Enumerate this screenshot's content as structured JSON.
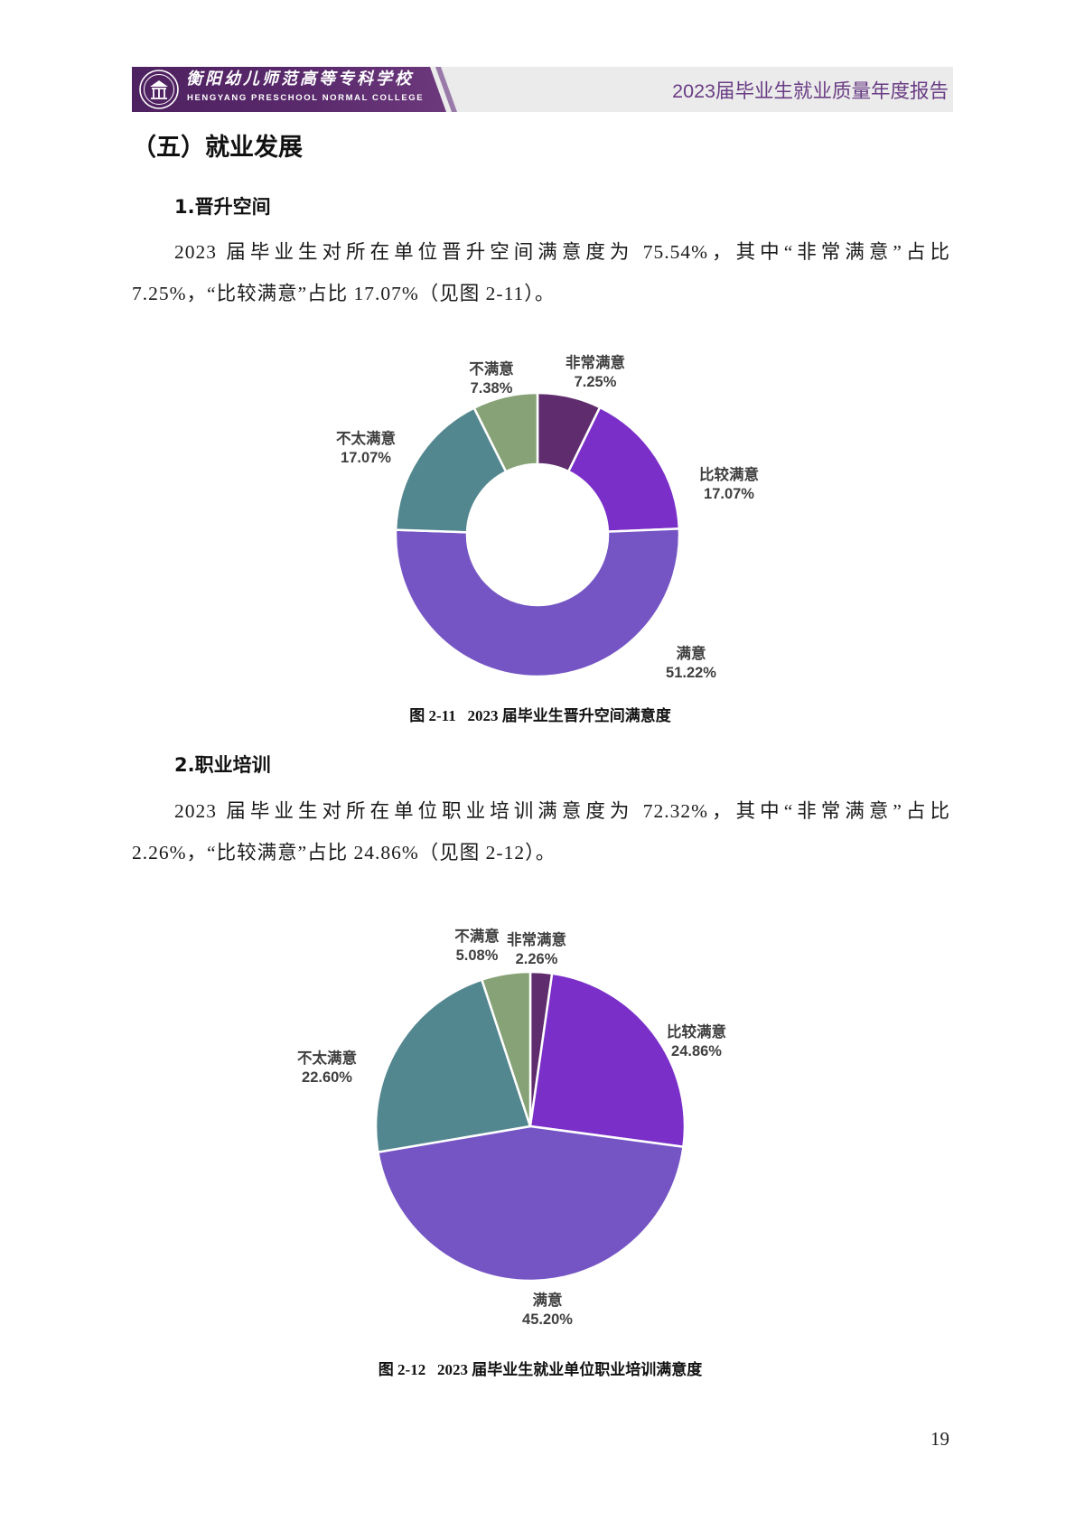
{
  "header": {
    "school_name_cn": "衡阳幼儿师范高等专科学校",
    "school_name_en": "HENGYANG PRESCHOOL NORMAL COLLEGE",
    "report_title": "2023届毕业生就业质量年度报告"
  },
  "colors": {
    "brand_purple": "#5a2a6c",
    "header_band": "#ebebeb",
    "report_title": "#6a3d85"
  },
  "section": {
    "title": "（五）就业发展",
    "subsections": [
      {
        "heading": "1.晋升空间",
        "lines": [
          "2023 届毕业生对所在单位晋升空间满意度为 75.54%，其中“非常满意”占比",
          "7.25%，“比较满意”占比 17.07%（见图 2-11）。"
        ]
      },
      {
        "heading": "2.职业培训",
        "lines": [
          "2023 届毕业生对所在单位职业培训满意度为 72.32%，其中“非常满意”占比",
          "2.26%，“比较满意”占比 24.86%（见图 2-12）。"
        ]
      }
    ]
  },
  "chart_data": [
    {
      "type": "pie",
      "donut": true,
      "title": "图 2-11   2023 届毕业生晋升空间满意度",
      "categories": [
        "非常满意",
        "比较满意",
        "满意",
        "不太满意",
        "不满意"
      ],
      "values": [
        7.25,
        17.07,
        51.22,
        17.07,
        7.38
      ],
      "data_labels": [
        "7.25%",
        "17.07%",
        "51.22%",
        "17.07%",
        "7.38%"
      ],
      "colors": [
        "#5f2c6e",
        "#7b2fc9",
        "#7555c4",
        "#53878f",
        "#86a276"
      ]
    },
    {
      "type": "pie",
      "donut": false,
      "title": "图 2-12   2023 届毕业生就业单位职业培训满意度",
      "categories": [
        "非常满意",
        "比较满意",
        "满意",
        "不太满意",
        "不满意"
      ],
      "values": [
        2.26,
        24.86,
        45.2,
        22.6,
        5.08
      ],
      "data_labels": [
        "2.26%",
        "24.86%",
        "45.20%",
        "22.60%",
        "5.08%"
      ],
      "colors": [
        "#5f2c6e",
        "#7b2fc9",
        "#7555c4",
        "#53878f",
        "#86a276"
      ]
    }
  ],
  "page_number": "19"
}
